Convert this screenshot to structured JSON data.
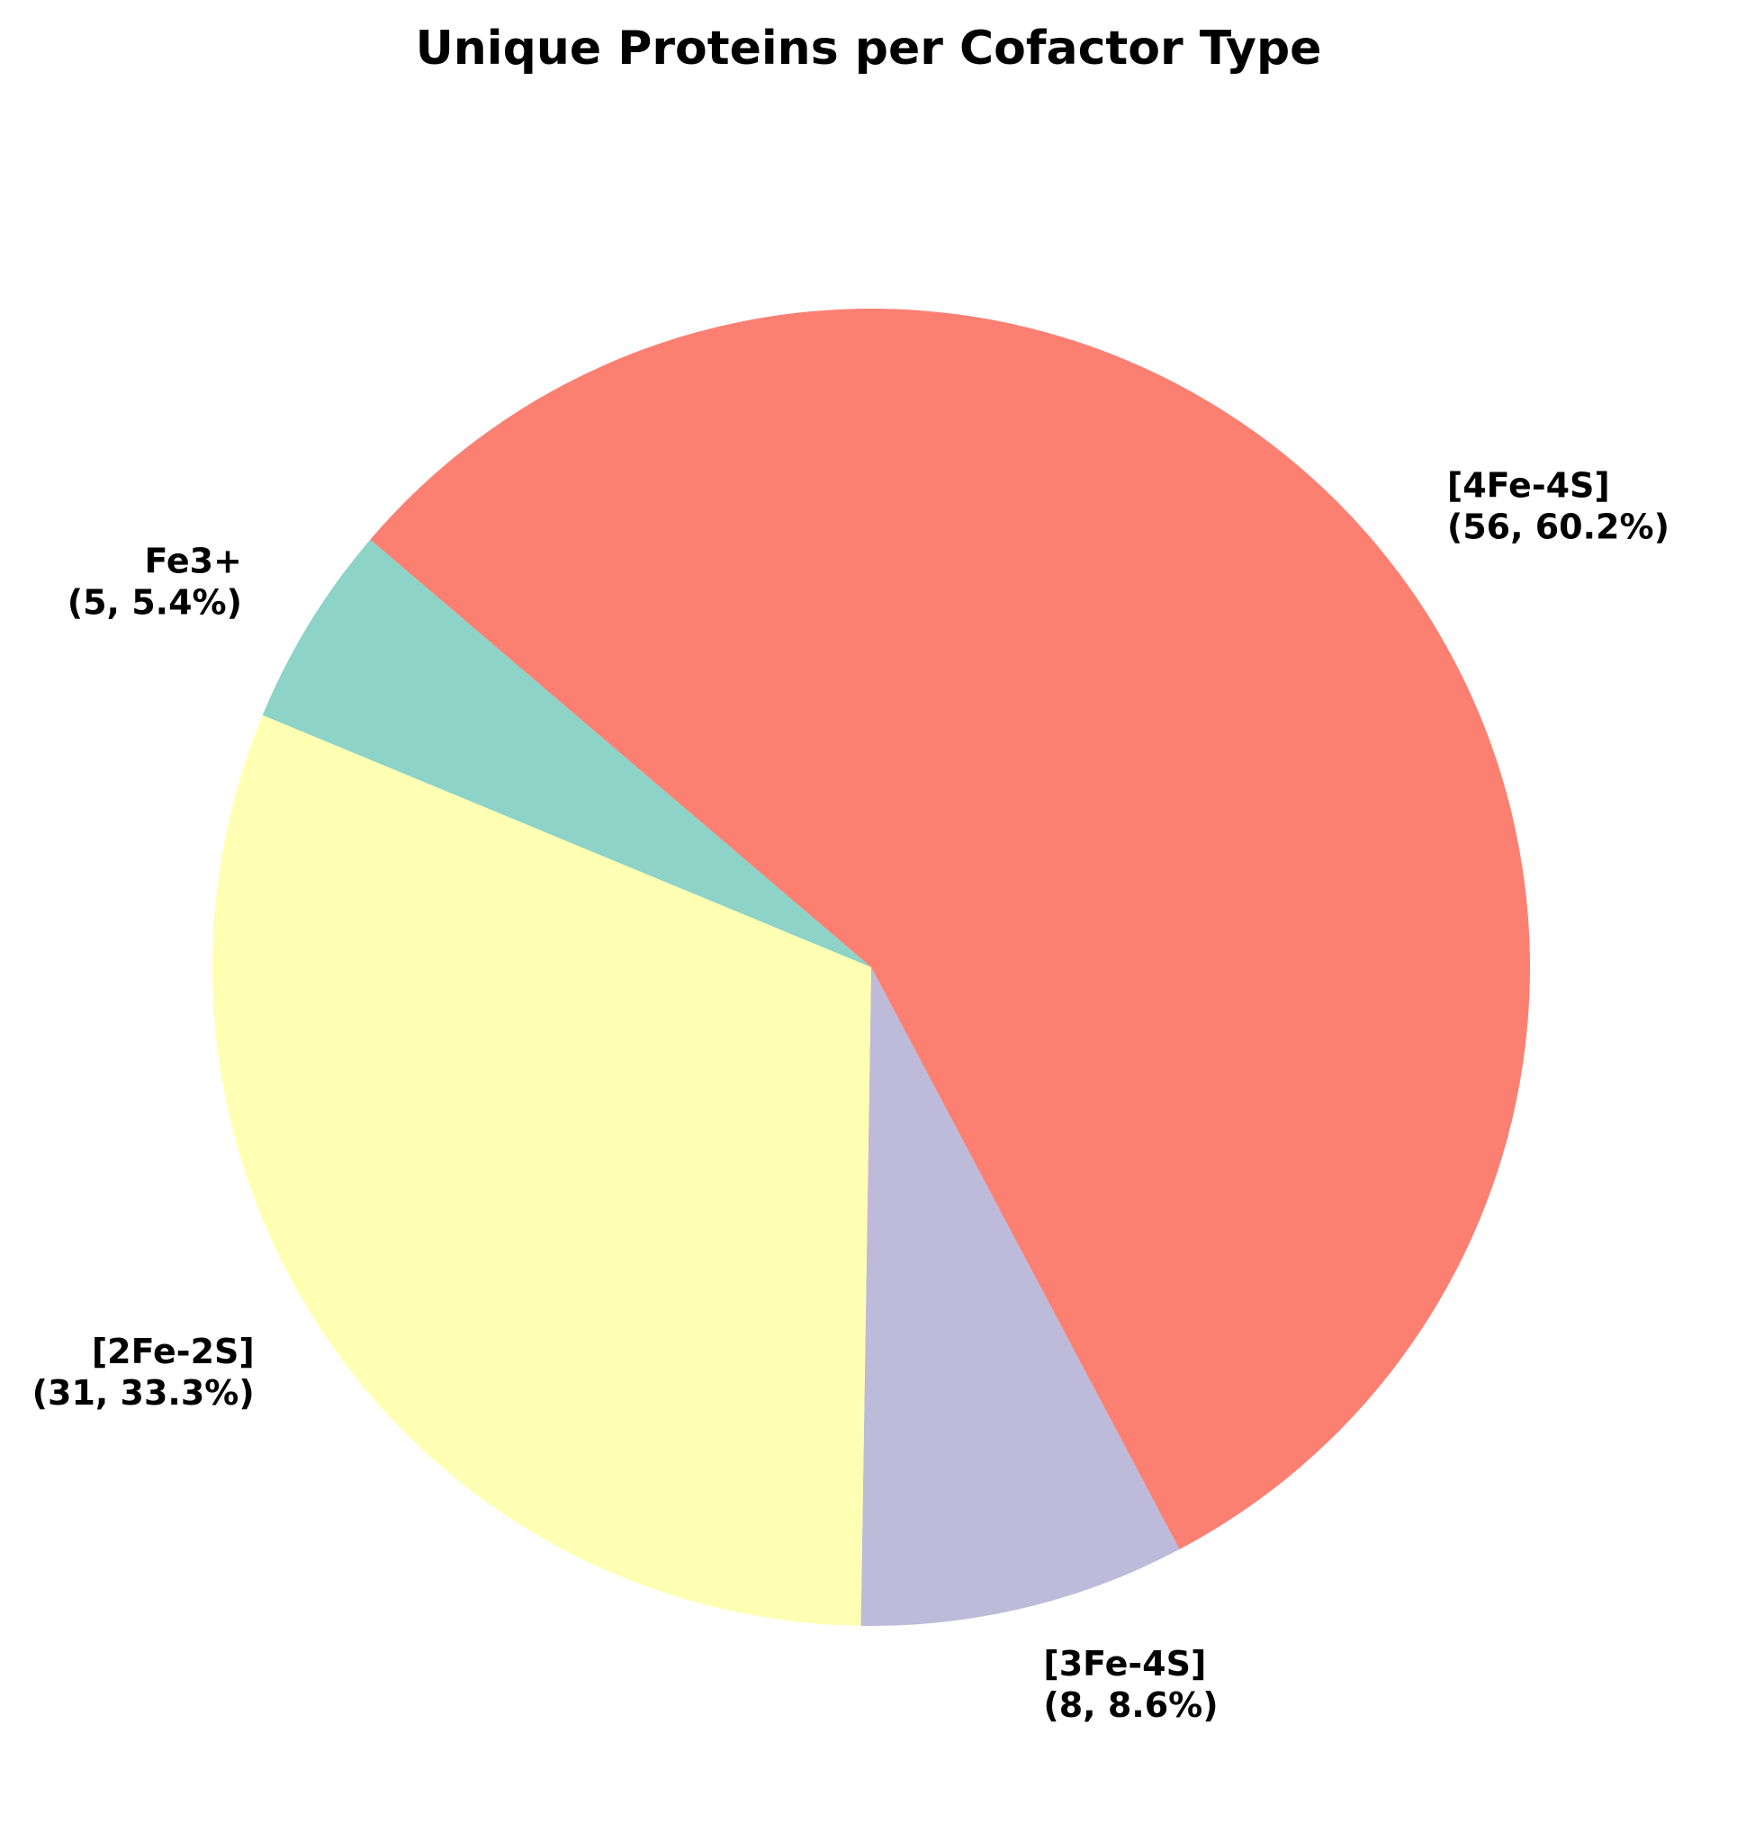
{
  "chart_data": {
    "type": "pie",
    "title": "Unique Proteins per Cofactor Type",
    "categories": [
      "Fe3+",
      "[4Fe-4S]",
      "[3Fe-4S]",
      "[2Fe-2S]"
    ],
    "values": [
      5,
      56,
      8,
      31
    ],
    "percent_labels": [
      "5.4%",
      "60.2%",
      "8.6%",
      "33.3%"
    ],
    "value_labels": [
      "(5, 5.4%)",
      "(56, 60.2%)",
      "(8, 8.6%)",
      "(31, 33.3%)"
    ],
    "colors": [
      "#8dd3c7",
      "#fb8072",
      "#bebada",
      "#ffffb3"
    ],
    "start_angle_deg": 157.5,
    "direction": "clockwise",
    "legend": "none"
  }
}
